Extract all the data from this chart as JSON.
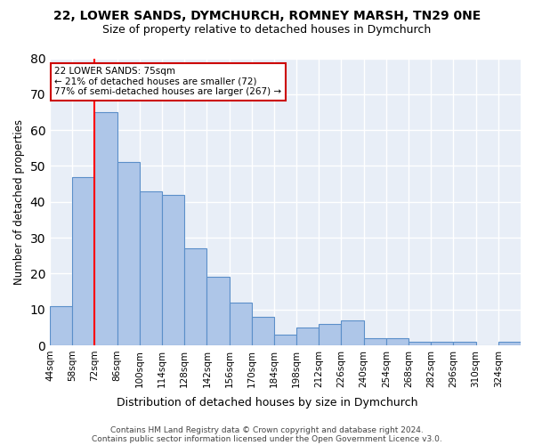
{
  "title_line1": "22, LOWER SANDS, DYMCHURCH, ROMNEY MARSH, TN29 0NE",
  "title_line2": "Size of property relative to detached houses in Dymchurch",
  "xlabel": "Distribution of detached houses by size in Dymchurch",
  "ylabel": "Number of detached properties",
  "bar_heights": [
    11,
    47,
    65,
    51,
    43,
    42,
    27,
    19,
    12,
    8,
    3,
    5,
    6,
    7,
    2,
    2,
    1,
    1,
    1,
    0,
    1
  ],
  "tick_labels": [
    "44sqm",
    "58sqm",
    "72sqm",
    "86sqm",
    "100sqm",
    "114sqm",
    "128sqm",
    "142sqm",
    "156sqm",
    "170sqm",
    "184sqm",
    "198sqm",
    "212sqm",
    "226sqm",
    "240sqm",
    "254sqm",
    "268sqm",
    "282sqm",
    "296sqm",
    "310sqm",
    "324sqm"
  ],
  "bar_color": "#aec6e8",
  "bar_edge_color": "#5b8fc9",
  "bg_color": "#e8eef7",
  "grid_color": "#ffffff",
  "red_line_bin_index": 2,
  "annotation_text_line1": "22 LOWER SANDS: 75sqm",
  "annotation_text_line2": "← 21% of detached houses are smaller (72)",
  "annotation_text_line3": "77% of semi-detached houses are larger (267) →",
  "annotation_box_edgecolor": "#cc0000",
  "ylim": [
    0,
    80
  ],
  "yticks": [
    0,
    10,
    20,
    30,
    40,
    50,
    60,
    70,
    80
  ],
  "footer1": "Contains HM Land Registry data © Crown copyright and database right 2024.",
  "footer2": "Contains public sector information licensed under the Open Government Licence v3.0."
}
